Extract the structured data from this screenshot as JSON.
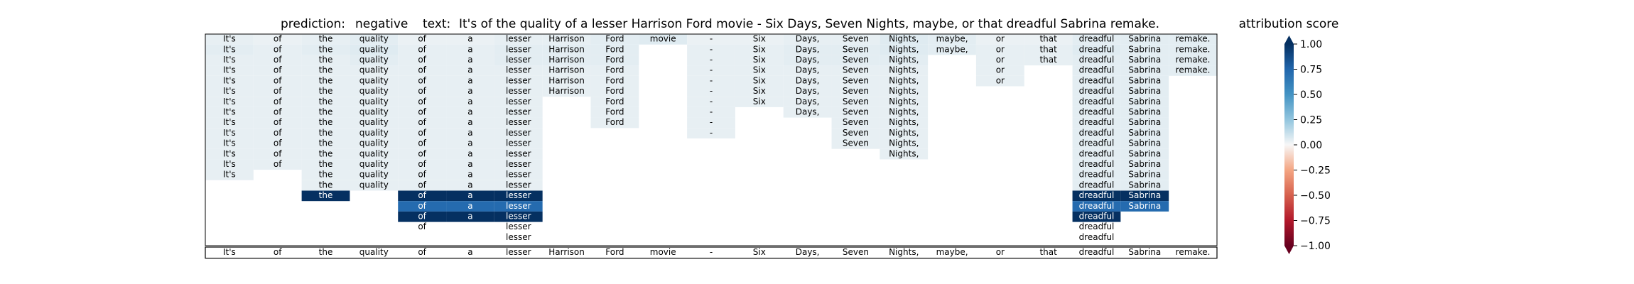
{
  "header": {
    "prediction_label": "prediction:",
    "prediction_value": "negative",
    "text_label": "text:",
    "text_value": "It's of the quality of a lesser Harrison Ford movie - Six Days, Seven Nights, maybe, or that dreadful Sabrina remake."
  },
  "chart_data": {
    "type": "heatmap",
    "title": "prediction:  negative     text:  It's of the quality of a lesser Harrison Ford movie - Six Days, Seven Nights, maybe, or that dreadful Sabrina remake.",
    "tokens": [
      "It's",
      "of",
      "the",
      "quality",
      "of",
      "a",
      "lesser",
      "Harrison",
      "Ford",
      "movie",
      "-",
      "Six",
      "Days,",
      "Seven",
      "Nights,",
      "maybe,",
      "or",
      "that",
      "dreadful",
      "Sabrina",
      "remake."
    ],
    "rows": [
      {
        "tokens": [
          "It's",
          "of",
          "the",
          "quality",
          "of",
          "a",
          "lesser",
          "Harrison",
          "Ford",
          "movie",
          "-",
          "Six",
          "Days,",
          "Seven",
          "Nights,",
          "maybe,",
          "or",
          "that",
          "dreadful",
          "Sabrina",
          "remake."
        ],
        "scores": [
          0.04,
          0.03,
          0.04,
          0.05,
          0.03,
          0.03,
          0.04,
          0.04,
          0.05,
          0.06,
          0.03,
          0.03,
          0.04,
          0.04,
          0.06,
          0.05,
          0.03,
          0.03,
          0.05,
          0.05,
          0.05
        ]
      },
      {
        "tokens": [
          "It's",
          "of",
          "the",
          "quality",
          "of",
          "a",
          "lesser",
          "Harrison",
          "Ford",
          "",
          "-",
          "Six",
          "Days,",
          "Seven",
          "Nights,",
          "maybe,",
          "or",
          "that",
          "dreadful",
          "Sabrina",
          "remake."
        ],
        "scores": [
          0.05,
          0.04,
          0.05,
          0.06,
          0.04,
          0.04,
          0.05,
          0.05,
          0.05,
          0,
          0.04,
          0.04,
          0.05,
          0.05,
          0.06,
          0.05,
          0.04,
          0.04,
          0.06,
          0.05,
          0.05
        ]
      },
      {
        "tokens": [
          "It's",
          "of",
          "the",
          "quality",
          "of",
          "a",
          "lesser",
          "Harrison",
          "Ford",
          "",
          "-",
          "Six",
          "Days,",
          "Seven",
          "Nights,",
          "",
          "or",
          "that",
          "dreadful",
          "Sabrina",
          "remake."
        ],
        "scores": [
          0.04,
          0.04,
          0.04,
          0.05,
          0.04,
          0.04,
          0.05,
          0.05,
          0.05,
          0,
          0.04,
          0.04,
          0.05,
          0.05,
          0.05,
          0,
          0.04,
          0.04,
          0.05,
          0.05,
          0.05
        ]
      },
      {
        "tokens": [
          "It's",
          "of",
          "the",
          "quality",
          "of",
          "a",
          "lesser",
          "Harrison",
          "Ford",
          "",
          "-",
          "Six",
          "Days,",
          "Seven",
          "Nights,",
          "",
          "or",
          "",
          "dreadful",
          "Sabrina",
          "remake."
        ],
        "scores": [
          0.04,
          0.04,
          0.04,
          0.04,
          0.04,
          0.04,
          0.04,
          0.04,
          0.04,
          0,
          0.04,
          0.04,
          0.04,
          0.04,
          0.04,
          0,
          0.04,
          0,
          0.05,
          0.05,
          0.05
        ]
      },
      {
        "tokens": [
          "It's",
          "of",
          "the",
          "quality",
          "of",
          "a",
          "lesser",
          "Harrison",
          "Ford",
          "",
          "-",
          "Six",
          "Days,",
          "Seven",
          "Nights,",
          "",
          "or",
          "",
          "dreadful",
          "Sabrina",
          ""
        ],
        "scores": [
          0.04,
          0.04,
          0.04,
          0.04,
          0.04,
          0.04,
          0.04,
          0.04,
          0.04,
          0,
          0.04,
          0.04,
          0.04,
          0.04,
          0.04,
          0,
          0.04,
          0,
          0.05,
          0.05,
          0
        ]
      },
      {
        "tokens": [
          "It's",
          "of",
          "the",
          "quality",
          "of",
          "a",
          "lesser",
          "Harrison",
          "Ford",
          "",
          "-",
          "Six",
          "Days,",
          "Seven",
          "Nights,",
          "",
          "",
          "",
          "dreadful",
          "Sabrina",
          ""
        ],
        "scores": [
          0.04,
          0.04,
          0.04,
          0.04,
          0.04,
          0.04,
          0.04,
          0.04,
          0.04,
          0,
          0.04,
          0.04,
          0.04,
          0.04,
          0.04,
          0,
          0,
          0,
          0.05,
          0.05,
          0
        ]
      },
      {
        "tokens": [
          "It's",
          "of",
          "the",
          "quality",
          "of",
          "a",
          "lesser",
          "",
          "Ford",
          "",
          "-",
          "Six",
          "Days,",
          "Seven",
          "Nights,",
          "",
          "",
          "",
          "dreadful",
          "Sabrina",
          ""
        ],
        "scores": [
          0.04,
          0.04,
          0.04,
          0.04,
          0.04,
          0.04,
          0.04,
          0,
          0.04,
          0,
          0.04,
          0.04,
          0.04,
          0.04,
          0.04,
          0,
          0,
          0,
          0.05,
          0.05,
          0
        ]
      },
      {
        "tokens": [
          "It's",
          "of",
          "the",
          "quality",
          "of",
          "a",
          "lesser",
          "",
          "Ford",
          "",
          "-",
          "",
          "Days,",
          "Seven",
          "Nights,",
          "",
          "",
          "",
          "dreadful",
          "Sabrina",
          ""
        ],
        "scores": [
          0.04,
          0.04,
          0.04,
          0.04,
          0.04,
          0.04,
          0.04,
          0,
          0.04,
          0,
          0.04,
          0,
          0.04,
          0.04,
          0.04,
          0,
          0,
          0,
          0.05,
          0.05,
          0
        ]
      },
      {
        "tokens": [
          "It's",
          "of",
          "the",
          "quality",
          "of",
          "a",
          "lesser",
          "",
          "Ford",
          "",
          "-",
          "",
          "",
          "Seven",
          "Nights,",
          "",
          "",
          "",
          "dreadful",
          "Sabrina",
          ""
        ],
        "scores": [
          0.04,
          0.04,
          0.04,
          0.04,
          0.04,
          0.04,
          0.04,
          0,
          0.04,
          0,
          0.04,
          0,
          0,
          0.04,
          0.04,
          0,
          0,
          0,
          0.05,
          0.05,
          0
        ]
      },
      {
        "tokens": [
          "It's",
          "of",
          "the",
          "quality",
          "of",
          "a",
          "lesser",
          "",
          "",
          "",
          "-",
          "",
          "",
          "Seven",
          "Nights,",
          "",
          "",
          "",
          "dreadful",
          "Sabrina",
          ""
        ],
        "scores": [
          0.04,
          0.04,
          0.04,
          0.04,
          0.04,
          0.04,
          0.04,
          0,
          0,
          0,
          0.04,
          0,
          0,
          0.04,
          0.04,
          0,
          0,
          0,
          0.05,
          0.05,
          0
        ]
      },
      {
        "tokens": [
          "It's",
          "of",
          "the",
          "quality",
          "of",
          "a",
          "lesser",
          "",
          "",
          "",
          "",
          "",
          "",
          "Seven",
          "Nights,",
          "",
          "",
          "",
          "dreadful",
          "Sabrina",
          ""
        ],
        "scores": [
          0.04,
          0.04,
          0.04,
          0.04,
          0.04,
          0.04,
          0.04,
          0,
          0,
          0,
          0,
          0,
          0,
          0.04,
          0.04,
          0,
          0,
          0,
          0.05,
          0.05,
          0
        ]
      },
      {
        "tokens": [
          "It's",
          "of",
          "the",
          "quality",
          "of",
          "a",
          "lesser",
          "",
          "",
          "",
          "",
          "",
          "",
          "",
          "Nights,",
          "",
          "",
          "",
          "dreadful",
          "Sabrina",
          ""
        ],
        "scores": [
          0.04,
          0.04,
          0.04,
          0.04,
          0.04,
          0.04,
          0.04,
          0,
          0,
          0,
          0,
          0,
          0,
          0,
          0.04,
          0,
          0,
          0,
          0.05,
          0.05,
          0
        ]
      },
      {
        "tokens": [
          "It's",
          "of",
          "the",
          "quality",
          "of",
          "a",
          "lesser",
          "",
          "",
          "",
          "",
          "",
          "",
          "",
          "",
          "",
          "",
          "",
          "dreadful",
          "Sabrina",
          ""
        ],
        "scores": [
          0.04,
          0.04,
          0.04,
          0.04,
          0.04,
          0.04,
          0.04,
          0,
          0,
          0,
          0,
          0,
          0,
          0,
          0,
          0,
          0,
          0,
          0.05,
          0.05,
          0
        ]
      },
      {
        "tokens": [
          "It's",
          "",
          "the",
          "quality",
          "of",
          "a",
          "lesser",
          "",
          "",
          "",
          "",
          "",
          "",
          "",
          "",
          "",
          "",
          "",
          "dreadful",
          "Sabrina",
          ""
        ],
        "scores": [
          0.04,
          0,
          0.04,
          0.04,
          0.04,
          0.04,
          0.04,
          0,
          0,
          0,
          0,
          0,
          0,
          0,
          0,
          0,
          0,
          0,
          0.05,
          0.05,
          0
        ]
      },
      {
        "tokens": [
          "",
          "",
          "the",
          "quality",
          "of",
          "a",
          "lesser",
          "",
          "",
          "",
          "",
          "",
          "",
          "",
          "",
          "",
          "",
          "",
          "dreadful",
          "Sabrina",
          ""
        ],
        "scores": [
          0,
          0,
          0.04,
          0.04,
          0.04,
          0.04,
          0.04,
          0,
          0,
          0,
          0,
          0,
          0,
          0,
          0,
          0,
          0,
          0,
          0.05,
          0.05,
          0
        ]
      },
      {
        "tokens": [
          "",
          "",
          "the",
          "",
          "of",
          "a",
          "lesser",
          "",
          "",
          "",
          "",
          "",
          "",
          "",
          "",
          "",
          "",
          "",
          "dreadful",
          "Sabrina",
          ""
        ],
        "scores": [
          0,
          0,
          1.0,
          0,
          1.0,
          1.0,
          1.0,
          0,
          0,
          0,
          0,
          0,
          0,
          0,
          0,
          0,
          0,
          0,
          1.0,
          1.0,
          0
        ]
      },
      {
        "tokens": [
          "",
          "",
          "",
          "",
          "of",
          "a",
          "lesser",
          "",
          "",
          "",
          "",
          "",
          "",
          "",
          "",
          "",
          "",
          "",
          "dreadful",
          "Sabrina",
          ""
        ],
        "scores": [
          0,
          0,
          0,
          0,
          0.72,
          0.72,
          0.72,
          0,
          0,
          0,
          0,
          0,
          0,
          0,
          0,
          0,
          0,
          0,
          0.72,
          0.72,
          0
        ]
      },
      {
        "tokens": [
          "",
          "",
          "",
          "",
          "of",
          "a",
          "lesser",
          "",
          "",
          "",
          "",
          "",
          "",
          "",
          "",
          "",
          "",
          "",
          "dreadful",
          "",
          ""
        ],
        "scores": [
          0,
          0,
          0,
          0,
          1.0,
          1.0,
          1.0,
          0,
          0,
          0,
          0,
          0,
          0,
          0,
          0,
          0,
          0,
          0,
          1.0,
          0,
          0
        ]
      },
      {
        "tokens": [
          "",
          "",
          "",
          "",
          "of",
          "",
          "lesser",
          "",
          "",
          "",
          "",
          "",
          "",
          "",
          "",
          "",
          "",
          "",
          "dreadful",
          "",
          ""
        ],
        "scores": [
          0,
          0,
          0,
          0,
          0,
          0,
          0,
          0,
          0,
          0,
          0,
          0,
          0,
          0,
          0,
          0,
          0,
          0,
          0,
          0,
          0
        ]
      },
      {
        "tokens": [
          "",
          "",
          "",
          "",
          "",
          "",
          "lesser",
          "",
          "",
          "",
          "",
          "",
          "",
          "",
          "",
          "",
          "",
          "",
          "dreadful",
          "",
          ""
        ],
        "scores": [
          0,
          0,
          0,
          0,
          0,
          0,
          0,
          0,
          0,
          0,
          0,
          0,
          0,
          0,
          0,
          0,
          0,
          0,
          0,
          0,
          0
        ]
      }
    ],
    "colorbar": {
      "label": "attribution score",
      "min": -1.0,
      "max": 1.0,
      "ticks": [
        "1.00",
        "0.75",
        "0.50",
        "0.25",
        "0.00",
        "−0.25",
        "−0.50",
        "−0.75",
        "−1.00"
      ],
      "tick_values": [
        1.0,
        0.75,
        0.5,
        0.25,
        0.0,
        -0.25,
        -0.5,
        -0.75,
        -1.0
      ],
      "colormap": "RdBu",
      "extend": "both"
    }
  }
}
